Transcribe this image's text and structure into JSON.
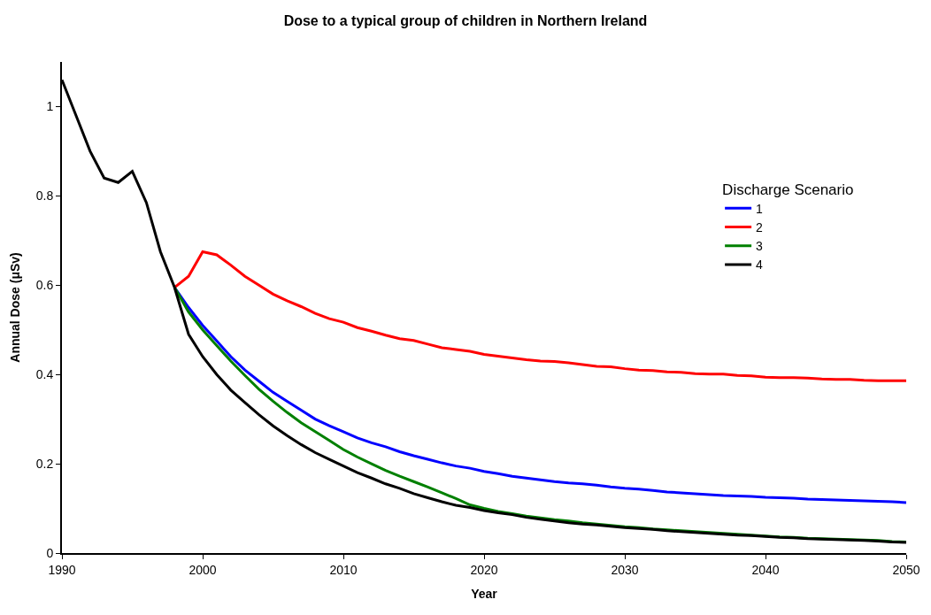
{
  "chart_data": {
    "type": "line",
    "title": "Dose to a typical group of children in Northern Ireland",
    "xlabel": "Year",
    "ylabel": "Annual Dose (μSv)",
    "legend_title": "Discharge Scenario",
    "legend": "right",
    "marker": "none",
    "line_style": "solid",
    "xlim": [
      1990,
      2050
    ],
    "xticks": [
      1990,
      2000,
      2010,
      2020,
      2030,
      2040,
      2050
    ],
    "ylim": [
      0,
      1.1
    ],
    "yticks": [
      0,
      0.2,
      0.4,
      0.6,
      0.8,
      1
    ],
    "series": [
      {
        "name": "1",
        "color": "#0000ff",
        "x": [
          1998,
          1999,
          2000,
          2001,
          2002,
          2003,
          2004,
          2005,
          2006,
          2007,
          2008,
          2009,
          2010,
          2011,
          2012,
          2013,
          2014,
          2015,
          2016,
          2017,
          2018,
          2019,
          2020,
          2021,
          2022,
          2023,
          2024,
          2025,
          2026,
          2027,
          2028,
          2029,
          2030,
          2031,
          2032,
          2033,
          2034,
          2035,
          2036,
          2037,
          2038,
          2039,
          2040,
          2041,
          2042,
          2043,
          2044,
          2045,
          2046,
          2047,
          2048,
          2049,
          2050
        ],
        "values": [
          0.595,
          0.55,
          0.51,
          0.475,
          0.44,
          0.41,
          0.385,
          0.36,
          0.34,
          0.32,
          0.3,
          0.285,
          0.272,
          0.258,
          0.247,
          0.238,
          0.227,
          0.218,
          0.21,
          0.202,
          0.195,
          0.19,
          0.183,
          0.178,
          0.172,
          0.168,
          0.164,
          0.16,
          0.157,
          0.155,
          0.152,
          0.148,
          0.145,
          0.143,
          0.14,
          0.137,
          0.135,
          0.133,
          0.131,
          0.129,
          0.128,
          0.127,
          0.125,
          0.124,
          0.123,
          0.121,
          0.12,
          0.119,
          0.118,
          0.117,
          0.116,
          0.115,
          0.113
        ]
      },
      {
        "name": "2",
        "color": "#ff0000",
        "x": [
          1998,
          1999,
          2000,
          2001,
          2002,
          2003,
          2004,
          2005,
          2006,
          2007,
          2008,
          2009,
          2010,
          2011,
          2012,
          2013,
          2014,
          2015,
          2016,
          2017,
          2018,
          2019,
          2020,
          2021,
          2022,
          2023,
          2024,
          2025,
          2026,
          2027,
          2028,
          2029,
          2030,
          2031,
          2032,
          2033,
          2034,
          2035,
          2036,
          2037,
          2038,
          2039,
          2040,
          2041,
          2042,
          2043,
          2044,
          2045,
          2046,
          2047,
          2048,
          2049,
          2050
        ],
        "values": [
          0.595,
          0.62,
          0.675,
          0.668,
          0.645,
          0.62,
          0.6,
          0.58,
          0.565,
          0.552,
          0.537,
          0.525,
          0.517,
          0.505,
          0.497,
          0.488,
          0.48,
          0.476,
          0.468,
          0.46,
          0.456,
          0.452,
          0.445,
          0.441,
          0.437,
          0.433,
          0.43,
          0.429,
          0.426,
          0.422,
          0.418,
          0.417,
          0.413,
          0.41,
          0.409,
          0.406,
          0.405,
          0.402,
          0.401,
          0.401,
          0.398,
          0.397,
          0.394,
          0.393,
          0.393,
          0.392,
          0.39,
          0.389,
          0.389,
          0.387,
          0.386,
          0.386,
          0.386
        ]
      },
      {
        "name": "3",
        "color": "#008000",
        "x": [
          1998,
          1999,
          2000,
          2001,
          2002,
          2003,
          2004,
          2005,
          2006,
          2007,
          2008,
          2009,
          2010,
          2011,
          2012,
          2013,
          2014,
          2015,
          2016,
          2017,
          2018,
          2019,
          2020,
          2021,
          2022,
          2023,
          2024,
          2025,
          2026,
          2027,
          2028,
          2029,
          2030,
          2031,
          2032,
          2033,
          2034,
          2035,
          2036,
          2037,
          2038,
          2039,
          2040,
          2041,
          2042,
          2043,
          2044,
          2045,
          2046,
          2047,
          2048,
          2049,
          2050
        ],
        "values": [
          0.595,
          0.54,
          0.5,
          0.465,
          0.43,
          0.398,
          0.367,
          0.34,
          0.315,
          0.292,
          0.272,
          0.252,
          0.232,
          0.215,
          0.2,
          0.185,
          0.172,
          0.16,
          0.148,
          0.135,
          0.122,
          0.108,
          0.1,
          0.093,
          0.088,
          0.083,
          0.079,
          0.075,
          0.072,
          0.068,
          0.065,
          0.062,
          0.059,
          0.057,
          0.054,
          0.052,
          0.05,
          0.048,
          0.046,
          0.044,
          0.042,
          0.04,
          0.038,
          0.036,
          0.035,
          0.033,
          0.032,
          0.031,
          0.03,
          0.029,
          0.028,
          0.026,
          0.025
        ]
      },
      {
        "name": "4",
        "color": "#000000",
        "x": [
          1990,
          1991,
          1992,
          1993,
          1994,
          1995,
          1996,
          1997,
          1998,
          1999,
          2000,
          2001,
          2002,
          2003,
          2004,
          2005,
          2006,
          2007,
          2008,
          2009,
          2010,
          2011,
          2012,
          2013,
          2014,
          2015,
          2016,
          2017,
          2018,
          2019,
          2020,
          2021,
          2022,
          2023,
          2024,
          2025,
          2026,
          2027,
          2028,
          2029,
          2030,
          2031,
          2032,
          2033,
          2034,
          2035,
          2036,
          2037,
          2038,
          2039,
          2040,
          2041,
          2042,
          2043,
          2044,
          2045,
          2046,
          2047,
          2048,
          2049,
          2050
        ],
        "values": [
          1.06,
          0.98,
          0.9,
          0.84,
          0.83,
          0.855,
          0.785,
          0.675,
          0.595,
          0.49,
          0.44,
          0.4,
          0.365,
          0.337,
          0.31,
          0.285,
          0.263,
          0.243,
          0.225,
          0.21,
          0.195,
          0.18,
          0.168,
          0.155,
          0.145,
          0.133,
          0.124,
          0.115,
          0.107,
          0.102,
          0.095,
          0.09,
          0.086,
          0.08,
          0.076,
          0.072,
          0.068,
          0.065,
          0.063,
          0.06,
          0.057,
          0.055,
          0.053,
          0.05,
          0.048,
          0.046,
          0.044,
          0.042,
          0.04,
          0.039,
          0.037,
          0.035,
          0.034,
          0.032,
          0.031,
          0.03,
          0.029,
          0.028,
          0.027,
          0.025,
          0.024
        ]
      }
    ]
  }
}
